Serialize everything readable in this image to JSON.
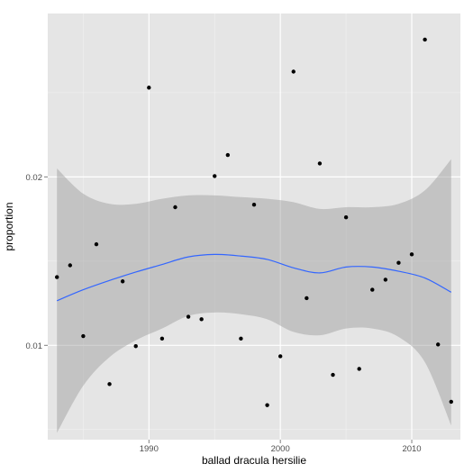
{
  "chart_data": {
    "type": "scatter",
    "title": "",
    "xlabel": "ballad dracula hersilie",
    "ylabel": "proportion",
    "xlim": [
      1982.3,
      2013.7
    ],
    "ylim": [
      0.0044,
      0.0297
    ],
    "x_ticks": [
      1990,
      2000,
      2010
    ],
    "x_tick_labels": [
      "1990",
      "2000",
      "2010"
    ],
    "y_ticks": [
      0.01,
      0.02
    ],
    "y_tick_labels": [
      "0.01",
      "0.02"
    ],
    "grid": true,
    "legend": "none",
    "colors": {
      "panel": "#e5e5e5",
      "grid_major": "#ffffff",
      "grid_minor": "#f2f2f2",
      "points": "#000000",
      "smooth_line": "#3366ff",
      "ribbon": "#999999"
    },
    "points": [
      {
        "x": 1983,
        "y": 0.01405
      },
      {
        "x": 1984,
        "y": 0.01475
      },
      {
        "x": 1985,
        "y": 0.01055
      },
      {
        "x": 1986,
        "y": 0.016
      },
      {
        "x": 1987,
        "y": 0.0077
      },
      {
        "x": 1988,
        "y": 0.0138
      },
      {
        "x": 1989,
        "y": 0.00995
      },
      {
        "x": 1990,
        "y": 0.0253
      },
      {
        "x": 1991,
        "y": 0.0104
      },
      {
        "x": 1992,
        "y": 0.0182
      },
      {
        "x": 1993,
        "y": 0.0117
      },
      {
        "x": 1994,
        "y": 0.01155
      },
      {
        "x": 1995,
        "y": 0.02005
      },
      {
        "x": 1996,
        "y": 0.0213
      },
      {
        "x": 1997,
        "y": 0.0104
      },
      {
        "x": 1998,
        "y": 0.01835
      },
      {
        "x": 1999,
        "y": 0.00645
      },
      {
        "x": 2000,
        "y": 0.00935
      },
      {
        "x": 2001,
        "y": 0.02625
      },
      {
        "x": 2002,
        "y": 0.0128
      },
      {
        "x": 2003,
        "y": 0.0208
      },
      {
        "x": 2004,
        "y": 0.00825
      },
      {
        "x": 2005,
        "y": 0.0176
      },
      {
        "x": 2006,
        "y": 0.0086
      },
      {
        "x": 2007,
        "y": 0.0133
      },
      {
        "x": 2008,
        "y": 0.0139
      },
      {
        "x": 2009,
        "y": 0.0149
      },
      {
        "x": 2010,
        "y": 0.0154
      },
      {
        "x": 2011,
        "y": 0.02815
      },
      {
        "x": 2012,
        "y": 0.01005
      },
      {
        "x": 2013,
        "y": 0.00665
      }
    ],
    "smooth": {
      "x": [
        1983,
        1985,
        1987,
        1989,
        1991,
        1993,
        1995,
        1997,
        1999,
        2001,
        2003,
        2005,
        2007,
        2009,
        2011,
        2013
      ],
      "y": [
        0.01265,
        0.0133,
        0.01385,
        0.01435,
        0.0148,
        0.01525,
        0.0154,
        0.0153,
        0.0151,
        0.0146,
        0.0143,
        0.01465,
        0.01465,
        0.0144,
        0.014,
        0.01315
      ],
      "lower": [
        0.0048,
        0.0076,
        0.0093,
        0.0103,
        0.011,
        0.01175,
        0.01195,
        0.01185,
        0.01155,
        0.0108,
        0.0106,
        0.011,
        0.011,
        0.0105,
        0.009,
        0.00525
      ],
      "upper": [
        0.0205,
        0.019,
        0.0184,
        0.0184,
        0.0187,
        0.0189,
        0.0189,
        0.0188,
        0.0187,
        0.0185,
        0.0181,
        0.0182,
        0.0182,
        0.0184,
        0.0192,
        0.02105
      ]
    }
  }
}
